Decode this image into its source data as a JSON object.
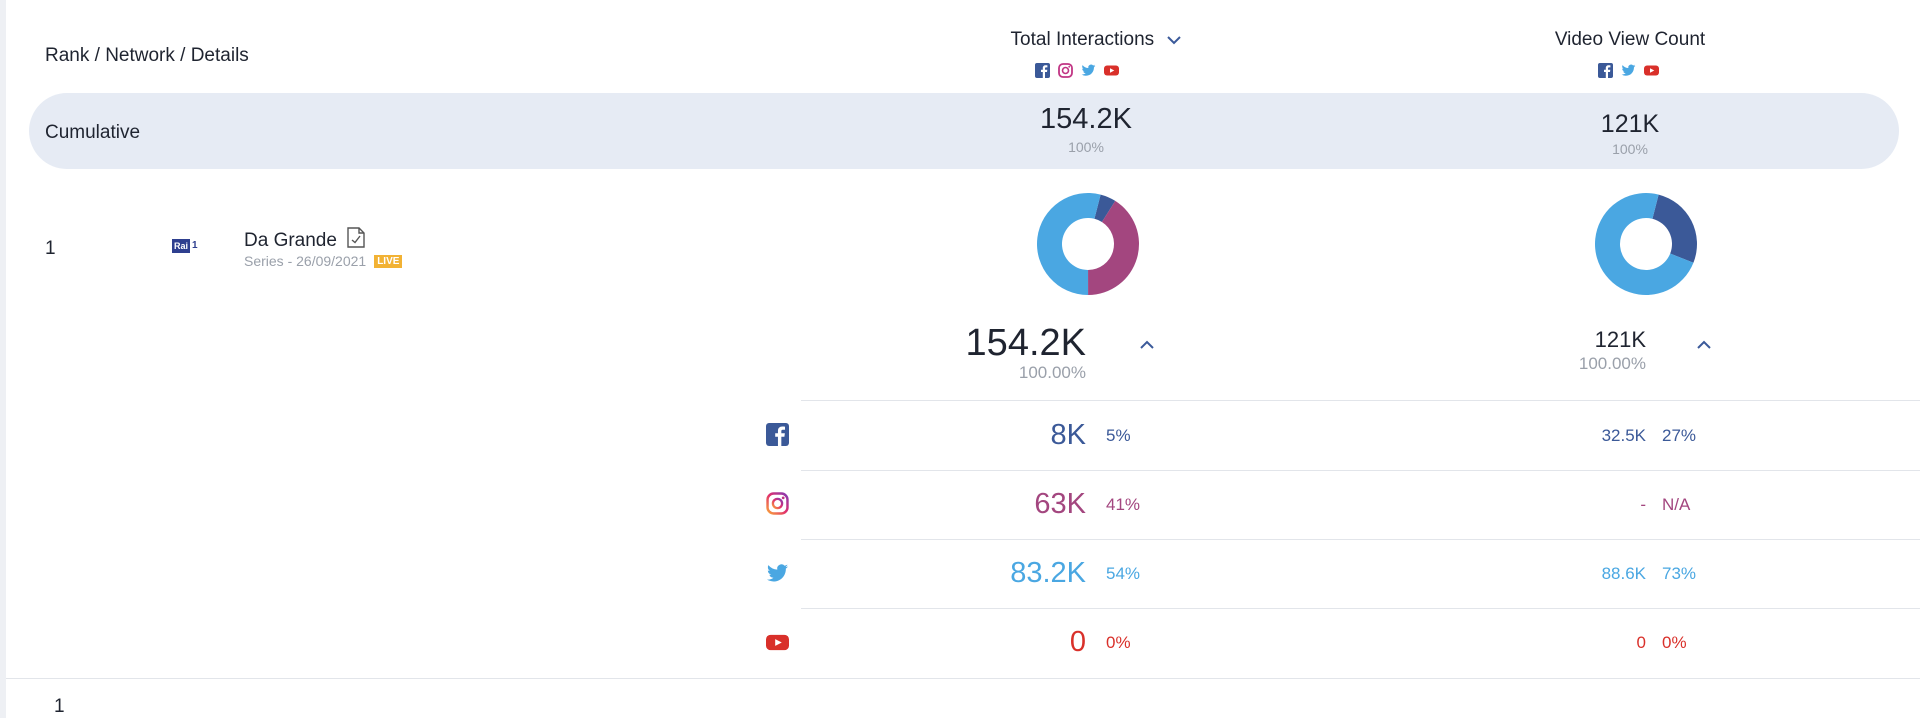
{
  "header": {
    "rank_label": "Rank / Network / Details",
    "col1_title": "Total Interactions",
    "col2_title": "Video View Count",
    "col1_networks": [
      "facebook-icon",
      "instagram-icon",
      "twitter-icon",
      "youtube-icon"
    ],
    "col2_networks": [
      "facebook-icon",
      "twitter-icon",
      "youtube-icon"
    ]
  },
  "cumulative": {
    "label": "Cumulative",
    "col1_value": "154.2K",
    "col1_pct": "100%",
    "col2_value": "121K",
    "col2_pct": "100%"
  },
  "row": {
    "rank": "1",
    "network_logo": "Rai 1",
    "title": "Da Grande",
    "subtitle": "Series - 26/09/2021",
    "badge": "LIVE",
    "col1_total": "154.2K",
    "col1_total_pct": "100.00%",
    "col2_total": "121K",
    "col2_total_pct": "100.00%",
    "breakdown": [
      {
        "network": "facebook",
        "icon": "facebook-icon",
        "col1_value": "8K",
        "col1_pct": "5%",
        "col2_value": "32.5K",
        "col2_pct": "27%"
      },
      {
        "network": "instagram",
        "icon": "instagram-icon",
        "col1_value": "63K",
        "col1_pct": "41%",
        "col2_value": "-",
        "col2_pct": "N/A"
      },
      {
        "network": "twitter",
        "icon": "twitter-icon",
        "col1_value": "83.2K",
        "col1_pct": "54%",
        "col2_value": "88.6K",
        "col2_pct": "73%"
      },
      {
        "network": "youtube",
        "icon": "youtube-icon",
        "col1_value": "0",
        "col1_pct": "0%",
        "col2_value": "0",
        "col2_pct": "0%"
      }
    ],
    "donut1": [
      {
        "network": "facebook",
        "fraction": 0.05,
        "color": "#3b5998"
      },
      {
        "network": "instagram",
        "fraction": 0.41,
        "color": "#a3467f"
      },
      {
        "network": "twitter",
        "fraction": 0.54,
        "color": "#4aa7e2"
      }
    ],
    "donut2": [
      {
        "network": "facebook",
        "fraction": 0.27,
        "color": "#3b5998"
      },
      {
        "network": "twitter",
        "fraction": 0.73,
        "color": "#4aa7e2"
      }
    ]
  },
  "footer": {
    "page": "1"
  },
  "colors": {
    "facebook": "#3b5998",
    "instagram": "#a3467f",
    "twitter": "#4aa7e2",
    "youtube": "#d9302a",
    "band": "#e6ebf4"
  }
}
